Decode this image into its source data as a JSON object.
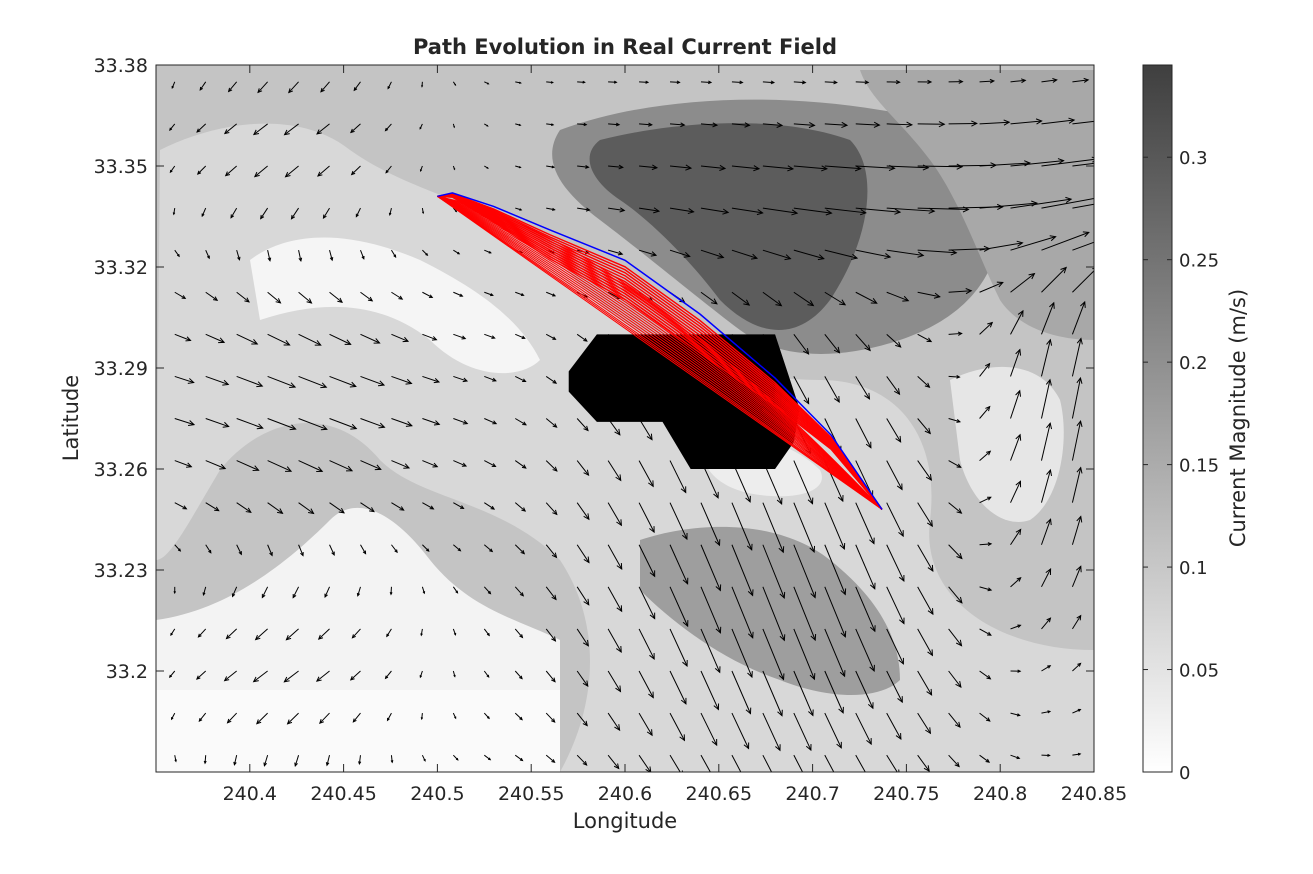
{
  "chart_data": {
    "type": "contourf_quiver",
    "title": "Path Evolution in Real Current Field",
    "xlabel": "Longitude",
    "ylabel": "Latitude",
    "xlim": [
      240.35,
      240.85
    ],
    "ylim": [
      33.17,
      33.38
    ],
    "xticks": [
      240.4,
      240.45,
      240.5,
      240.55,
      240.6,
      240.65,
      240.7,
      240.75,
      240.8,
      240.85
    ],
    "xtick_labels": [
      "240.4",
      "240.45",
      "240.5",
      "240.55",
      "240.6",
      "240.65",
      "240.7",
      "240.75",
      "240.8",
      "240.85"
    ],
    "yticks": [
      33.2,
      33.23,
      33.26,
      33.29,
      33.32,
      33.35,
      33.38
    ],
    "ytick_labels": [
      "33.2",
      "33.23",
      "33.26",
      "33.29",
      "33.32",
      "33.35",
      "33.38"
    ],
    "colorbar": {
      "label": "Current Magnitude (m/s)",
      "range": [
        0,
        0.345
      ],
      "ticks": [
        0,
        0.05,
        0.1,
        0.15,
        0.2,
        0.25,
        0.3
      ],
      "tick_labels": [
        "0",
        "0.05",
        "0.1",
        "0.15",
        "0.2",
        "0.25",
        "0.3"
      ],
      "colormap": "gray (reversed)"
    },
    "start_point": [
      240.5,
      33.341
    ],
    "end_point": [
      240.737,
      33.248
    ],
    "obstacle": {
      "color": "#000000",
      "polygon": [
        [
          240.57,
          33.289
        ],
        [
          240.585,
          33.3
        ],
        [
          240.68,
          33.3
        ],
        [
          240.693,
          33.278
        ],
        [
          240.69,
          33.268
        ],
        [
          240.68,
          33.26
        ],
        [
          240.635,
          33.26
        ],
        [
          240.62,
          33.274
        ],
        [
          240.585,
          33.274
        ],
        [
          240.57,
          33.283
        ]
      ]
    },
    "final_path": {
      "color": "#0000ff",
      "points": [
        [
          240.5,
          33.341
        ],
        [
          240.508,
          33.342
        ],
        [
          240.53,
          33.338
        ],
        [
          240.56,
          33.331
        ],
        [
          240.6,
          33.322
        ],
        [
          240.64,
          33.306
        ],
        [
          240.68,
          33.287
        ],
        [
          240.71,
          33.27
        ],
        [
          240.737,
          33.248
        ]
      ]
    },
    "path_iterations": {
      "color": "#ff0000",
      "bulges": [
        0.0,
        -0.0015,
        -0.003,
        -0.005,
        -0.007,
        -0.009,
        -0.011,
        -0.013,
        -0.015,
        -0.017,
        -0.019,
        -0.021,
        -0.023,
        -0.025,
        -0.027,
        -0.029,
        -0.031,
        -0.033,
        -0.035
      ]
    },
    "quiver": {
      "color": "#000000",
      "x_start": 240.36,
      "x_end": 240.85,
      "x_step": 0.0165,
      "y_start": 33.175,
      "y_end": 33.38,
      "y_step": 0.0125
    }
  }
}
